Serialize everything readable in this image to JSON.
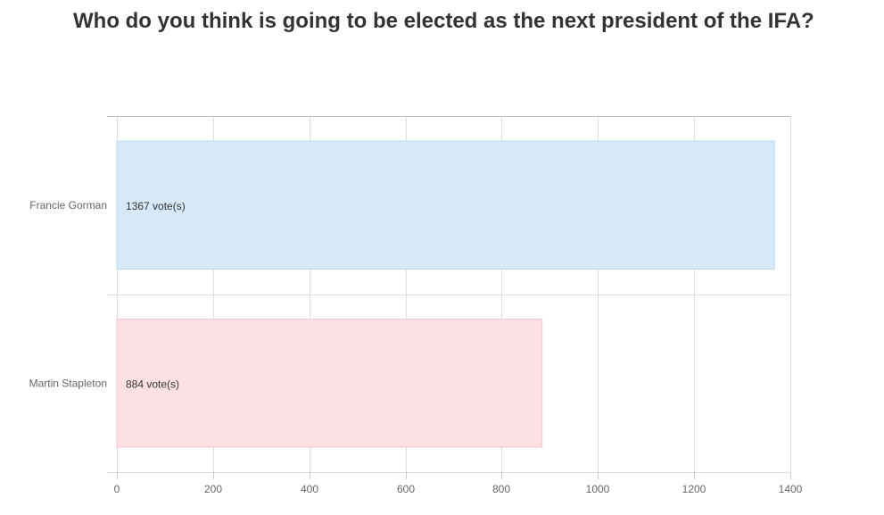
{
  "page": {
    "title": "Who do you think is going to be elected as the next president of the IFA?"
  },
  "colors": {
    "title": "#333333",
    "grid": "#dddddd",
    "axis_text": "#666666"
  },
  "chart_data": {
    "type": "bar",
    "orientation": "horizontal",
    "title": "",
    "categories": [
      "Francie Gorman",
      "Martin Stapleton"
    ],
    "values": [
      1367,
      884
    ],
    "data_labels": [
      "1367 vote(s)",
      "884 vote(s)"
    ],
    "bar_colors": [
      "#d6e9f8",
      "#fde0e5"
    ],
    "bar_border_colors": [
      "#b9d9f2",
      "#f8c6cf"
    ],
    "xlabel": "",
    "ylabel": "",
    "xlim": [
      0,
      1400
    ],
    "xticks": [
      0,
      200,
      400,
      600,
      800,
      1000,
      1200,
      1400
    ],
    "grid": true,
    "legend": "none"
  }
}
